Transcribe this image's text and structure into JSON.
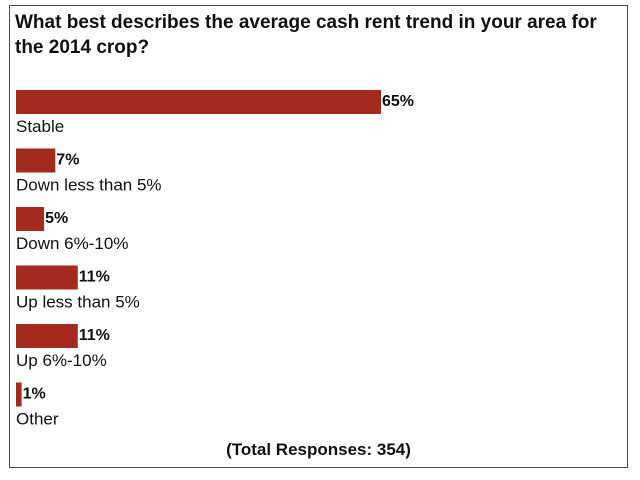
{
  "poll": {
    "question": "What best describes the average cash rent trend in your area for the 2014 crop?",
    "total_responses": "(Total Responses: 354)"
  },
  "colors": {
    "bar": "#a52a1e"
  },
  "chart_data": {
    "type": "bar",
    "orientation": "horizontal",
    "title": "What best describes the average cash rent trend in your area for the 2014 crop?",
    "categories": [
      "Stable",
      "Down less than 5%",
      "Down 6%-10%",
      "Up less than 5%",
      "Up 6%-10%",
      "Other"
    ],
    "values": [
      65,
      7,
      5,
      11,
      11,
      1
    ],
    "value_labels": [
      "65%",
      "7%",
      "5%",
      "11%",
      "11%",
      "1%"
    ],
    "unit": "%",
    "xlim": [
      0,
      100
    ],
    "grid": false,
    "legend": "none"
  }
}
